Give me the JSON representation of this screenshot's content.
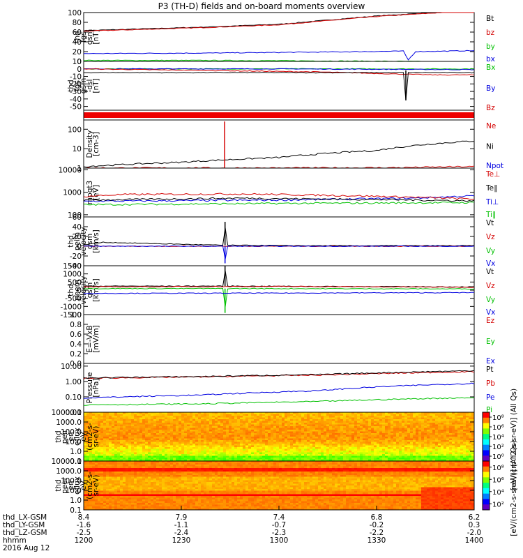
{
  "chart_data": {
    "type": "line",
    "title": "P3 (TH-D) fields and on-board moments overview",
    "date_label": "2016 Aug 12",
    "x_range_hhmm": [
      "1200",
      "1400"
    ],
    "panels": [
      {
        "id": "fgs",
        "ylabel": [
          "thd",
          "fgs",
          "gsm",
          "[nT]"
        ],
        "ylim": [
          0,
          100
        ],
        "scale": "linear",
        "ticks": [
          "100",
          "80",
          "60",
          "40",
          "20",
          "0"
        ],
        "tick_values": [
          100,
          80,
          60,
          40,
          20,
          0
        ],
        "legend": [
          {
            "name": "Bt",
            "color": "#000000"
          },
          {
            "name": "bz",
            "color": "#d40000"
          },
          {
            "name": "by",
            "color": "#00c000"
          },
          {
            "name": "bx",
            "color": "#0000e0"
          }
        ],
        "series": [
          {
            "name": "Bt",
            "color": "#000000",
            "x": [
              0,
              0.3,
              0.5,
              0.75,
              1
            ],
            "values": [
              63,
              70,
              76,
              93,
              105
            ]
          },
          {
            "name": "bz",
            "color": "#d40000",
            "x": [
              0,
              0.3,
              0.5,
              0.75,
              1
            ],
            "values": [
              62,
              69,
              75,
              92,
              104
            ]
          },
          {
            "name": "by",
            "color": "#00c000",
            "x": [
              0,
              0.3,
              0.6,
              0.85,
              1
            ],
            "values": [
              2,
              2,
              1,
              0,
              -2
            ]
          },
          {
            "name": "bx",
            "color": "#0000e0",
            "x": [
              0,
              0.3,
              0.6,
              0.82,
              0.83,
              0.85,
              1
            ],
            "values": [
              16,
              17,
              19,
              21,
              2,
              20,
              22
            ]
          }
        ]
      },
      {
        "id": "fgs_dsl",
        "ylabel": [
          "thd",
          "fgs",
          "gsm",
          "-dsl",
          "[nT]"
        ],
        "ylim": [
          -55,
          10
        ],
        "scale": "linear",
        "ticks": [
          "10",
          "0",
          "-10",
          "-20",
          "-30",
          "-40",
          "-50"
        ],
        "tick_values": [
          10,
          0,
          -10,
          -20,
          -30,
          -40,
          -50
        ],
        "legend": [
          {
            "name": "Bx",
            "color": "#00c000"
          },
          {
            "name": "By",
            "color": "#0000e0"
          },
          {
            "name": "Bz",
            "color": "#d40000"
          }
        ],
        "series": [
          {
            "name": "Bx",
            "color": "#00c000",
            "x": [
              0,
              0.5,
              1
            ],
            "values": [
              0,
              0,
              0
            ]
          },
          {
            "name": "By",
            "color": "#0000e0",
            "x": [
              0,
              0.5,
              1
            ],
            "values": [
              0,
              0,
              -1
            ]
          },
          {
            "name": "Bz",
            "color": "#d40000",
            "x": [
              0,
              0.3,
              0.6,
              0.82,
              0.9,
              1
            ],
            "values": [
              0,
              -2,
              -4,
              -7,
              -8,
              -8
            ]
          },
          {
            "name": "spike",
            "color": "#000000",
            "x": [
              0.82,
              0.825,
              0.83
            ],
            "values": [
              -2,
              -42,
              -5
            ]
          }
        ]
      },
      {
        "id": "bar",
        "color": "#ee0000"
      },
      {
        "id": "density",
        "ylabel": [
          "Density",
          "[cm-3]"
        ],
        "ylim": [
          1,
          300
        ],
        "scale": "log",
        "ticks": [
          "100",
          "10",
          "1"
        ],
        "tick_values": [
          100,
          10,
          1
        ],
        "legend": [
          {
            "name": "Ne",
            "color": "#d40000"
          },
          {
            "name": "Ni",
            "color": "#000000"
          },
          {
            "name": "Npot",
            "color": "#0000e0"
          }
        ],
        "series": [
          {
            "name": "Ni",
            "color": "#000000",
            "x": [
              0,
              0.25,
              0.5,
              0.75,
              1
            ],
            "values": [
              1.2,
              2,
              3.5,
              8,
              25
            ]
          },
          {
            "name": "Ne",
            "color": "#d40000",
            "x": [
              0,
              0.36,
              0.361,
              0.362,
              0.5,
              0.8,
              1
            ],
            "values": [
              1,
              1,
              250,
              1,
              1,
              1.05,
              1.2
            ]
          }
        ]
      },
      {
        "id": "mpgt3",
        "ylabel": [
          "mpgt3",
          "[eV]"
        ],
        "ylim": [
          80,
          12000
        ],
        "scale": "log",
        "ticks": [
          "10000",
          "1000",
          "100"
        ],
        "tick_values": [
          10000,
          1000,
          100
        ],
        "legend": [
          {
            "name": "Te⊥",
            "color": "#d40000"
          },
          {
            "name": "Te∥",
            "color": "#000000"
          },
          {
            "name": "Ti⊥",
            "color": "#0000e0"
          },
          {
            "name": "Ti∥",
            "color": "#00c000"
          }
        ],
        "series": [
          {
            "name": "Ti⊥",
            "color": "#0000e0",
            "x": [
              0,
              0.5,
              0.85,
              1
            ],
            "values": [
              400,
              450,
              550,
              700
            ]
          },
          {
            "name": "Ti∥",
            "color": "#00c000",
            "x": [
              0,
              0.5,
              1
            ],
            "values": [
              280,
              320,
              350
            ]
          },
          {
            "name": "Te⊥",
            "color": "#d40000",
            "x": [
              0,
              0.1,
              0.4,
              0.7,
              1
            ],
            "values": [
              650,
              800,
              850,
              700,
              500
            ]
          },
          {
            "name": "Te∥",
            "color": "#000000",
            "x": [
              0,
              0.4,
              1
            ],
            "values": [
              450,
              550,
              420
            ]
          }
        ]
      },
      {
        "id": "peim_vel",
        "ylabel": [
          "thd",
          "peim",
          "velocity",
          "gsm",
          "[km/s]"
        ],
        "ylim": [
          -40,
          60
        ],
        "scale": "linear",
        "ticks": [
          "60",
          "40",
          "20",
          "0",
          "-20",
          "-40"
        ],
        "tick_values": [
          60,
          40,
          20,
          0,
          -20,
          -40
        ],
        "legend": [
          {
            "name": "Vt",
            "color": "#000000"
          },
          {
            "name": "Vz",
            "color": "#d40000"
          },
          {
            "name": "Vy",
            "color": "#00c000"
          },
          {
            "name": "Vx",
            "color": "#0000e0"
          }
        ],
        "series": [
          {
            "name": "Vt",
            "color": "#000000",
            "x": [
              0,
              0.05,
              0.3,
              0.36,
              0.362,
              0.364,
              0.6,
              1
            ],
            "values": [
              3,
              8,
              3,
              2,
              50,
              2,
              1,
              1
            ]
          },
          {
            "name": "Vz",
            "color": "#d40000",
            "x": [
              0,
              0.5,
              1
            ],
            "values": [
              0,
              0,
              0
            ]
          },
          {
            "name": "Vx",
            "color": "#0000e0",
            "x": [
              0,
              0.36,
              0.362,
              0.364,
              1
            ],
            "values": [
              0,
              0,
              -35,
              0,
              0
            ]
          }
        ]
      },
      {
        "id": "peem_vel",
        "ylabel": [
          "thd",
          "peem",
          "velocity",
          "gsm",
          "[km/s]"
        ],
        "ylim": [
          -1500,
          1500
        ],
        "scale": "linear",
        "ticks": [
          "1500",
          "1000",
          "500",
          "0",
          "-500",
          "-1000",
          "-1500"
        ],
        "tick_values": [
          1500,
          1000,
          500,
          0,
          -500,
          -1000,
          -1500
        ],
        "legend": [
          {
            "name": "Vt",
            "color": "#000000"
          },
          {
            "name": "Vz",
            "color": "#d40000"
          },
          {
            "name": "Vy",
            "color": "#00c000"
          },
          {
            "name": "Vx",
            "color": "#0000e0"
          }
        ],
        "series": [
          {
            "name": "Vt",
            "color": "#000000",
            "x": [
              0,
              0.36,
              0.362,
              0.364,
              1
            ],
            "values": [
              250,
              250,
              1500,
              250,
              200
            ]
          },
          {
            "name": "Vz",
            "color": "#d40000",
            "x": [
              0,
              0.5,
              1
            ],
            "values": [
              200,
              230,
              180
            ]
          },
          {
            "name": "Vy",
            "color": "#00c000",
            "x": [
              0,
              0.36,
              0.362,
              0.364,
              1
            ],
            "values": [
              100,
              100,
              -1400,
              100,
              80
            ]
          },
          {
            "name": "Vx",
            "color": "#0000e0",
            "x": [
              0,
              0.5,
              1
            ],
            "values": [
              -200,
              -180,
              -150
            ]
          }
        ]
      },
      {
        "id": "efield",
        "ylabel": [
          "E=-VxB",
          "[mV/m]"
        ],
        "ylim": [
          0,
          1
        ],
        "scale": "linear",
        "ticks": [
          "1.0",
          "0.8",
          "0.6",
          "0.4",
          "0.2",
          "0.0"
        ],
        "tick_values": [
          1.0,
          0.8,
          0.6,
          0.4,
          0.2,
          0.0
        ],
        "legend": [
          {
            "name": "Ez",
            "color": "#d40000"
          },
          {
            "name": "Ey",
            "color": "#00c000"
          },
          {
            "name": "Ex",
            "color": "#0000e0"
          }
        ],
        "series": []
      },
      {
        "id": "pressure",
        "ylabel": [
          "Pressure",
          "[nPa]"
        ],
        "ylim": [
          0.01,
          15
        ],
        "scale": "log",
        "ticks": [
          "10.00",
          "1.00",
          "0.10",
          "0.01"
        ],
        "tick_values": [
          10,
          1,
          0.1,
          0.01
        ],
        "legend": [
          {
            "name": "Pt",
            "color": "#000000"
          },
          {
            "name": "Pb",
            "color": "#d40000"
          },
          {
            "name": "Pe",
            "color": "#0000e0"
          },
          {
            "name": "Pi",
            "color": "#00c000"
          }
        ],
        "series": [
          {
            "name": "Pb",
            "color": "#d40000",
            "x": [
              0,
              0.3,
              0.6,
              1
            ],
            "values": [
              1.6,
              2.0,
              2.6,
              4.3
            ]
          },
          {
            "name": "Pt",
            "color": "#000000",
            "x": [
              0,
              0.3,
              0.6,
              1
            ],
            "values": [
              1.7,
              2.1,
              2.8,
              5.0
            ]
          },
          {
            "name": "Pe",
            "color": "#0000e0",
            "x": [
              0,
              0.3,
              0.6,
              1
            ],
            "values": [
              0.085,
              0.13,
              0.25,
              0.75
            ]
          },
          {
            "name": "Pi",
            "color": "#00c000",
            "x": [
              0,
              0.3,
              0.6,
              1
            ],
            "values": [
              0.03,
              0.035,
              0.05,
              0.09
            ]
          }
        ]
      },
      {
        "id": "peir_spec",
        "type": "heatmap",
        "ylabel": [
          "thd",
          "peir",
          "en",
          "eflux",
          "eV",
          "(cm2-s-",
          "sr-eV)"
        ],
        "ylim": [
          0.1,
          10000
        ],
        "scale": "log",
        "ticks": [
          "10000.0",
          "1000.0",
          "100.0",
          "10.0",
          "1.0",
          "0.1"
        ],
        "tick_values": [
          10000,
          1000,
          100,
          10,
          1,
          0.1
        ],
        "colorbar_ticks": [
          "10⁸",
          "10⁶",
          "10⁴",
          "10²",
          "10⁰"
        ],
        "colorbar_tick_values": [
          8,
          6,
          4,
          2,
          0
        ],
        "colorbar_range": [
          -1,
          9
        ]
      },
      {
        "id": "peer_spec",
        "type": "heatmap",
        "ylabel": [
          "thd",
          "peer",
          "en",
          "eflux",
          "eV",
          "(cm2-s-",
          "sr-eV)"
        ],
        "ylim": [
          0.1,
          10000
        ],
        "scale": "log",
        "ticks": [
          "10000.0",
          "1000.0",
          "100.0",
          "10.0",
          "1.0",
          "0.1"
        ],
        "tick_values": [
          10000,
          1000,
          100,
          10,
          1,
          0.1
        ],
        "colorbar_ticks": [
          "10⁸",
          "10⁶",
          "10⁴",
          "10²"
        ],
        "colorbar_tick_values": [
          8,
          6,
          4,
          2
        ],
        "colorbar_range": [
          1,
          9
        ]
      }
    ],
    "colorbar_label": "[eV/(cm2-s-sr-eV)] (All Qs)",
    "colorbar_label_2": "[eV/(cm^2-s-sr-eV)] (All Qs)",
    "x_rows": [
      {
        "label": "thd_LX-GSM",
        "values": [
          "8.4",
          "7.9",
          "7.4",
          "6.8",
          "6.2"
        ]
      },
      {
        "label": "thd_LY-GSM",
        "values": [
          "-1.6",
          "-1.1",
          "-0.7",
          "-0.2",
          "0.3"
        ]
      },
      {
        "label": "thd_LZ-GSM",
        "values": [
          "-2.5",
          "-2.4",
          "-2.3",
          "-2.2",
          "-2.0"
        ]
      },
      {
        "label": "hhmm",
        "values": [
          "1200",
          "1230",
          "1300",
          "1330",
          "1400"
        ]
      }
    ]
  }
}
